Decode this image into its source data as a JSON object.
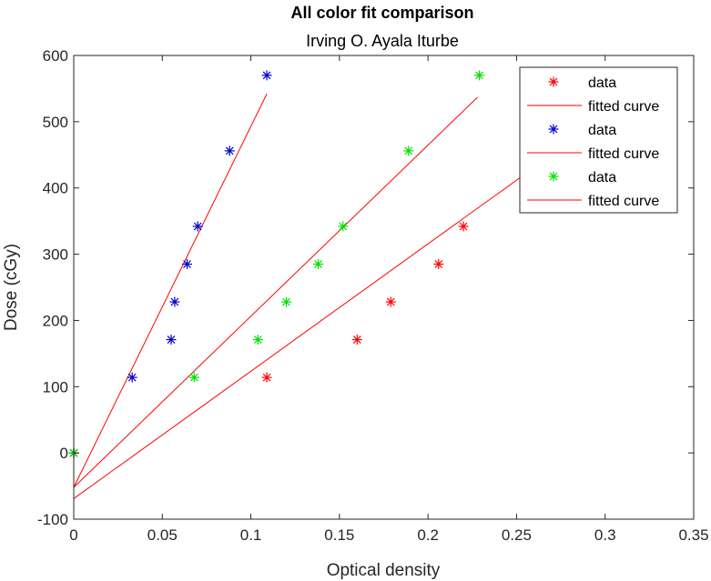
{
  "chart_data": {
    "type": "scatter",
    "title": "All color fit comparison",
    "subtitle": "Irving O. Ayala Iturbe",
    "xlabel": "Optical density",
    "ylabel": "Dose (cGy)",
    "xlim": [
      0,
      0.35
    ],
    "ylim": [
      -100,
      600
    ],
    "xticks": [
      0,
      0.05,
      0.1,
      0.15,
      0.2,
      0.25,
      0.3,
      0.35
    ],
    "xtick_labels": [
      "0",
      "0.05",
      "0.1",
      "0.15",
      "0.2",
      "0.25",
      "0.3",
      "0.35"
    ],
    "yticks": [
      -100,
      0,
      100,
      200,
      300,
      400,
      500,
      600
    ],
    "ytick_labels": [
      "-100",
      "0",
      "100",
      "200",
      "300",
      "400",
      "500",
      "600"
    ],
    "grid": false,
    "legend_position": "top-right",
    "series": [
      {
        "name": "data",
        "marker": "asterisk",
        "color": "#ff0000",
        "x": [
          0,
          0.109,
          0.16,
          0.179,
          0.206,
          0.22
        ],
        "y": [
          0,
          114,
          171,
          228,
          285,
          342
        ],
        "fit": {
          "name": "fitted curve",
          "color": "#ff0000",
          "x": [
            0,
            0.273
          ],
          "y": [
            -69,
            456
          ]
        }
      },
      {
        "name": "data",
        "marker": "asterisk",
        "color": "#0000cc",
        "x": [
          0,
          0.033,
          0.055,
          0.057,
          0.064,
          0.07,
          0.088,
          0.109
        ],
        "y": [
          0,
          114,
          171,
          228,
          285,
          342,
          456,
          570
        ],
        "fit": {
          "name": "fitted curve",
          "color": "#ff0000",
          "x": [
            0,
            0.109
          ],
          "y": [
            -52,
            542
          ]
        }
      },
      {
        "name": "data",
        "marker": "asterisk",
        "color": "#00e000",
        "x": [
          0,
          0.068,
          0.104,
          0.12,
          0.138,
          0.152,
          0.189,
          0.229
        ],
        "y": [
          0,
          114,
          171,
          228,
          285,
          342,
          456,
          570
        ],
        "fit": {
          "name": "fitted curve",
          "color": "#ff0000",
          "x": [
            0,
            0.228
          ],
          "y": [
            -52,
            537
          ]
        }
      }
    ]
  }
}
